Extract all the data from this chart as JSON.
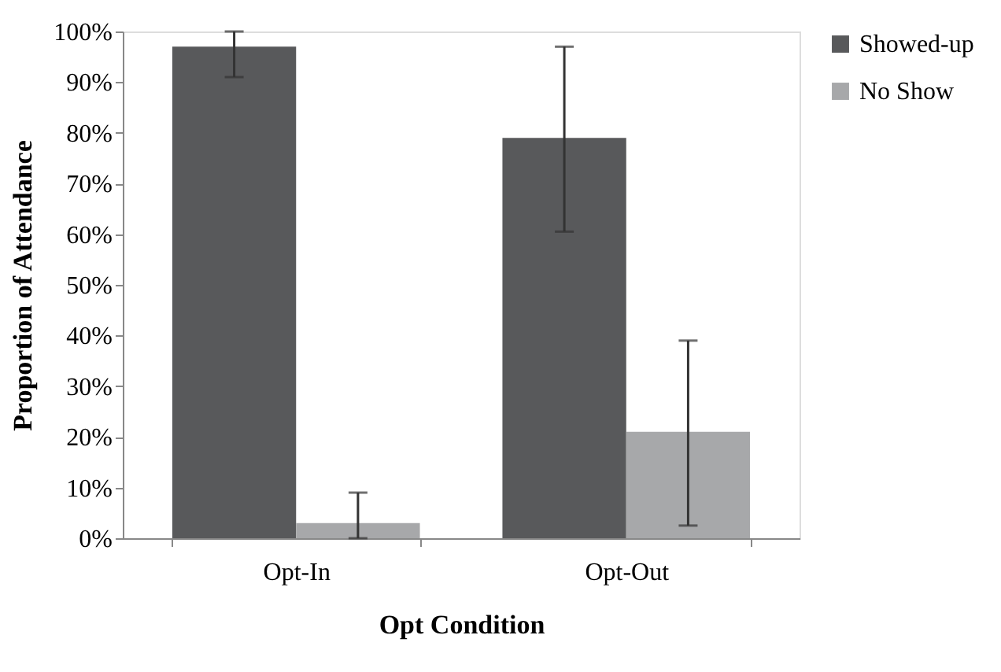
{
  "chart_data": {
    "type": "bar",
    "xlabel": "Opt Condition",
    "ylabel": "Proportion of Attendance",
    "categories": [
      "Opt-In",
      "Opt-Out"
    ],
    "series": [
      {
        "name": "Showed-up",
        "color": "#58595b",
        "values": [
          97,
          79
        ],
        "errors": [
          [
            91,
            100
          ],
          [
            60.5,
            97
          ]
        ]
      },
      {
        "name": "No Show",
        "color": "#a7a8aa",
        "values": [
          3,
          21
        ],
        "errors": [
          [
            0,
            9
          ],
          [
            2.5,
            39
          ]
        ]
      }
    ],
    "ylim": [
      0,
      100
    ],
    "yticks": [
      {
        "value": 0,
        "label": "0%"
      },
      {
        "value": 10,
        "label": "10%"
      },
      {
        "value": 20,
        "label": "20%"
      },
      {
        "value": 30,
        "label": "30%"
      },
      {
        "value": 40,
        "label": "40%"
      },
      {
        "value": 50,
        "label": "50%"
      },
      {
        "value": 60,
        "label": "60%"
      },
      {
        "value": 70,
        "label": "70%"
      },
      {
        "value": 80,
        "label": "80%"
      },
      {
        "value": 90,
        "label": "90%"
      },
      {
        "value": 100,
        "label": "100%"
      }
    ],
    "grid": false,
    "legend": "right"
  }
}
